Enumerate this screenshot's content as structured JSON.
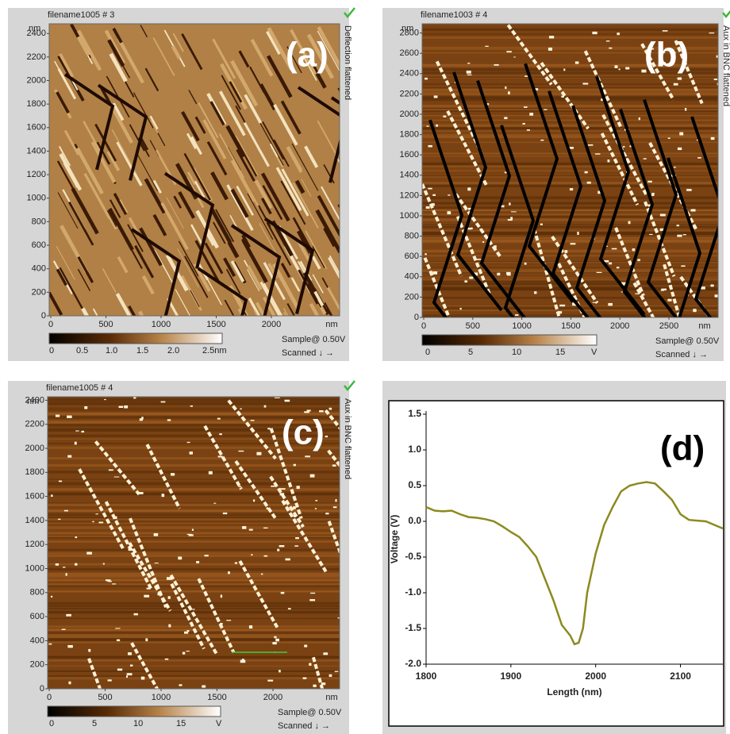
{
  "panels": [
    {
      "label": "(a)",
      "title": "filename1005 # 3",
      "side_label": "Deflection flattened",
      "y_unit": "nm",
      "yticks": [
        0,
        200,
        400,
        600,
        800,
        1000,
        1200,
        1400,
        1600,
        1800,
        2000,
        2200,
        2400
      ],
      "xticks": [
        0,
        500,
        1000,
        1500,
        2000
      ],
      "x_unit": "nm",
      "colorbar_labels": [
        "0",
        "0.5",
        "1.0",
        "1.5",
        "2.0",
        "2.5nm"
      ],
      "sample": "Sample@ 0.50V",
      "scanned": "Scanned ↓ →"
    },
    {
      "label": "(b)",
      "title": "filename1003 # 4",
      "side_label": "Aux in BNC flattened",
      "y_unit": "nm",
      "yticks": [
        0,
        200,
        400,
        600,
        800,
        1000,
        1200,
        1400,
        1600,
        1800,
        2000,
        2200,
        2400,
        2600,
        2800
      ],
      "xticks": [
        0,
        500,
        1000,
        1500,
        2000,
        2500
      ],
      "x_unit": "nm",
      "colorbar_labels": [
        "0",
        "5",
        "10",
        "15",
        "V"
      ],
      "sample": "Sample@ 0.50V",
      "scanned": "Scanned ↓ →"
    },
    {
      "label": "(c)",
      "title": "filename1005 # 4",
      "side_label": "Aux in BNC flattened",
      "y_unit": "nm",
      "yticks": [
        0,
        200,
        400,
        600,
        800,
        1000,
        1200,
        1400,
        1600,
        1800,
        2000,
        2200,
        2400
      ],
      "xticks": [
        0,
        500,
        1000,
        1500,
        2000
      ],
      "x_unit": "nm",
      "colorbar_labels": [
        "0",
        "5",
        "10",
        "15",
        "V"
      ],
      "sample": "Sample@ 0.50V",
      "scanned": "Scanned ↓ →"
    }
  ],
  "chart_data": {
    "type": "line",
    "label": "(d)",
    "x_label": "Length (nm)",
    "y_label": "Voltage (V)",
    "x": [
      1800,
      1810,
      1820,
      1830,
      1840,
      1850,
      1860,
      1870,
      1880,
      1890,
      1900,
      1910,
      1920,
      1930,
      1940,
      1950,
      1960,
      1970,
      1975,
      1980,
      1985,
      1990,
      2000,
      2010,
      2020,
      2030,
      2040,
      2050,
      2060,
      2070,
      2080,
      2090,
      2100,
      2110,
      2120,
      2130,
      2140,
      2150
    ],
    "values": [
      0.2,
      0.15,
      0.14,
      0.15,
      0.1,
      0.06,
      0.05,
      0.03,
      0.0,
      -0.07,
      -0.15,
      -0.22,
      -0.35,
      -0.5,
      -0.8,
      -1.1,
      -1.45,
      -1.6,
      -1.72,
      -1.7,
      -1.5,
      -1.0,
      -0.45,
      -0.05,
      0.2,
      0.42,
      0.5,
      0.53,
      0.55,
      0.53,
      0.42,
      0.3,
      0.1,
      0.02,
      0.01,
      0.0,
      -0.05,
      -0.1
    ],
    "color": "#8b8a1f",
    "xlim": [
      1800,
      2150
    ],
    "xticks": [
      1800,
      1900,
      2000,
      2100
    ],
    "ylim": [
      -2.0,
      1.5
    ],
    "yticks": [
      {
        "value": -2,
        "label": "-2.0"
      },
      -1.5,
      {
        "value": -1,
        "label": "-1.0"
      },
      -0.5,
      {
        "value": 0,
        "label": "0.0"
      },
      0.5,
      {
        "value": 1,
        "label": "1.0"
      },
      1.5
    ]
  }
}
